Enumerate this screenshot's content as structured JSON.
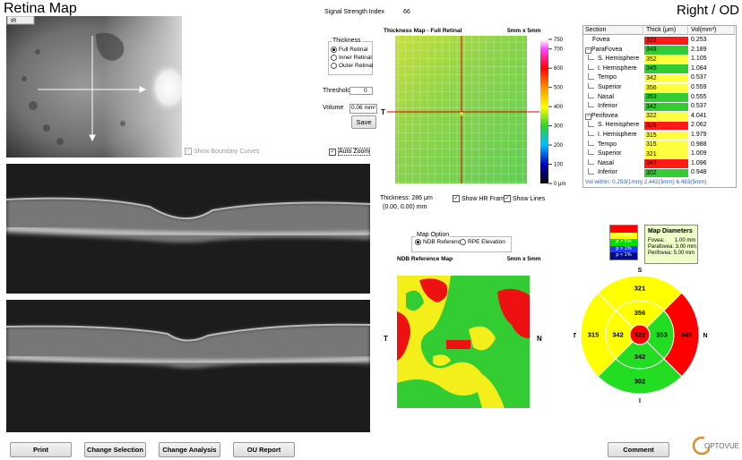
{
  "header": {
    "title": "Retina Map",
    "eye": "Right / OD",
    "signal_label": "Signal Strength Index",
    "signal_value": "66"
  },
  "ir_image": {
    "label": "IR"
  },
  "thickness_group": {
    "title": "Thickness",
    "options": [
      "Full Retinal",
      "Inner Retinal",
      "Outer Retinal"
    ],
    "selected": 0
  },
  "threshold": {
    "label": "Threshold",
    "value": "0"
  },
  "volume": {
    "label": "Volume",
    "value": "0.06 mm²"
  },
  "save": "Save",
  "checkboxes": {
    "boundary": {
      "label": "Show Boundary Curves",
      "checked": true,
      "enabled": false
    },
    "auto_zoom": {
      "label": "Auto Zoom",
      "checked": true,
      "enabled": true
    },
    "hr_frames": {
      "label": "Show HR Frames",
      "checked": true,
      "enabled": true
    },
    "lines": {
      "label": "Show Lines",
      "checked": true,
      "enabled": true
    }
  },
  "thickness_map": {
    "title": "Thickness Map - Full Retinal",
    "size": "5mm x 5mm",
    "left": "T",
    "right": "N",
    "scale": [
      750,
      700,
      600,
      500,
      400,
      300,
      200,
      100,
      {
        "value": 0,
        "label": "0 μm"
      }
    ],
    "readout": "Thickness: 286 μm",
    "coords": "(0.00, 0.00) mm"
  },
  "table": {
    "header": [
      "Section",
      "Thick (μm)",
      "Vol(mm³)"
    ],
    "rows": [
      {
        "section": "Fovea",
        "thick": "322",
        "vol": "0.253",
        "color": "#ff1a1a",
        "level": 0
      },
      {
        "section": "ParaFovea",
        "thick": "348",
        "vol": "2.189",
        "color": "#33cc33",
        "level": 0
      },
      {
        "section": "S. Hemisphere",
        "thick": "352",
        "vol": "1.105",
        "color": "#ffff40",
        "level": 1
      },
      {
        "section": "I. Hemisphere",
        "thick": "345",
        "vol": "1.084",
        "color": "#33cc33",
        "level": 1
      },
      {
        "section": "Tempo",
        "thick": "342",
        "vol": "0.537",
        "color": "#ffff40",
        "level": 1
      },
      {
        "section": "Superior",
        "thick": "356",
        "vol": "0.559",
        "color": "#ffff40",
        "level": 1
      },
      {
        "section": "Nasal",
        "thick": "353",
        "vol": "0.555",
        "color": "#33cc33",
        "level": 1
      },
      {
        "section": "Inferior",
        "thick": "342",
        "vol": "0.537",
        "color": "#33cc33",
        "level": 1
      },
      {
        "section": "Perifovea",
        "thick": "322",
        "vol": "4.041",
        "color": "#ffff40",
        "level": 0
      },
      {
        "section": "S. Hemisphere",
        "thick": "326",
        "vol": "2.062",
        "color": "#ff1a1a",
        "level": 1
      },
      {
        "section": "I. Hemisphere",
        "thick": "315",
        "vol": "1.979",
        "color": "#ffff40",
        "level": 1
      },
      {
        "section": "Tempo",
        "thick": "315",
        "vol": "0.988",
        "color": "#ffff40",
        "level": 1
      },
      {
        "section": "Superior",
        "thick": "321",
        "vol": "1.009",
        "color": "#ffff40",
        "level": 1
      },
      {
        "section": "Nasal",
        "thick": "349",
        "vol": "1.096",
        "color": "#ff1a1a",
        "level": 1
      },
      {
        "section": "Inferior",
        "thick": "302",
        "vol": "0.948",
        "color": "#33cc33",
        "level": 1
      }
    ],
    "footer": "Vol within: 0.253(1mm) 2.442(3mm) 6.483(5mm)"
  },
  "map_option": {
    "title": "Map Option",
    "options": [
      "NDB Reference",
      "RPE Elevation"
    ],
    "selected": 0
  },
  "ndb_map": {
    "title": "NDB Reference Map",
    "size": "5mm x 5mm",
    "left": "T",
    "right": "N"
  },
  "legend": [
    {
      "label": "p > 99%",
      "color": "#ff0000",
      "text_color": "#ff0000"
    },
    {
      "label": "p > 95%",
      "color": "#ffff00",
      "text_color": "#ffffff"
    },
    {
      "label": "p > 5%",
      "color": "#00dd00",
      "text_color": "#ffffff"
    },
    {
      "label": "p > 1%",
      "color": "#1a3cff",
      "text_color": "#ffffff"
    },
    {
      "label": "p < 1%",
      "color": "#000a8c",
      "text_color": "#ffffff"
    }
  ],
  "map_diameters": {
    "title": "Map Diameters",
    "lines": [
      "Fovea:       1.00 mm",
      "Parafovea: 3.00 mm",
      "Perifovea: 5.00 mm"
    ]
  },
  "sector_map": {
    "directions": [
      "S",
      "N",
      "I",
      "T"
    ],
    "center": {
      "value": "322",
      "color": "#ff0000"
    },
    "parafovea": [
      {
        "value": "356",
        "color": "#ffff00"
      },
      {
        "value": "353",
        "color": "#22dd22"
      },
      {
        "value": "342",
        "color": "#22dd22"
      },
      {
        "value": "342",
        "color": "#ffff00"
      }
    ],
    "perifovea": [
      {
        "value": "321",
        "color": "#ffff00"
      },
      {
        "value": "349",
        "color": "#ff0000"
      },
      {
        "value": "302",
        "color": "#22dd22"
      },
      {
        "value": "315",
        "color": "#ffff00"
      }
    ]
  },
  "buttons": [
    "Print",
    "Change Selection",
    "Change Analysis",
    "OU Report"
  ],
  "comment": "Comment",
  "logo": "OPTOVUE"
}
